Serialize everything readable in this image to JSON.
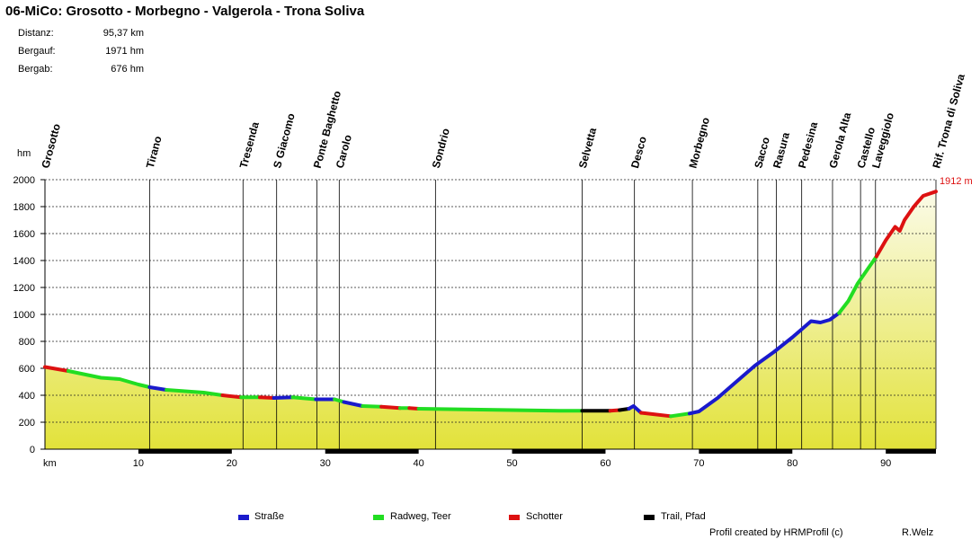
{
  "title": "06-MiCo: Grosotto - Morbegno - Valgerola - Trona Soliva",
  "stats": [
    {
      "label": "Distanz:",
      "value": "95,37 km"
    },
    {
      "label": "Bergauf:",
      "value": "1971 hm"
    },
    {
      "label": "Bergab:",
      "value": "676 hm"
    }
  ],
  "legend": [
    {
      "label": "Straße",
      "color": "#1a1acc"
    },
    {
      "label": "Radweg, Teer",
      "color": "#22dd22"
    },
    {
      "label": "Schotter",
      "color": "#dd1111"
    },
    {
      "label": "Trail, Pfad",
      "color": "#000000"
    }
  ],
  "footer": {
    "credit": "Profil created by HRMProfil (c)",
    "author": "R.Welz"
  },
  "chart_data": {
    "type": "area",
    "xlabel": "km",
    "ylabel": "hm",
    "xlim": [
      0,
      95.37
    ],
    "ylim": [
      0,
      2000
    ],
    "x_ticks": [
      10,
      20,
      30,
      40,
      50,
      60,
      70,
      80,
      90
    ],
    "y_ticks": [
      0,
      200,
      400,
      600,
      800,
      1000,
      1200,
      1400,
      1600,
      1800,
      2000
    ],
    "grid": true,
    "end_label": "1912 m",
    "places": [
      {
        "name": "Grosotto",
        "km": 0
      },
      {
        "name": "Tirano",
        "km": 11.2
      },
      {
        "name": "Tresenda",
        "km": 21.2
      },
      {
        "name": "S Giacomo",
        "km": 24.8
      },
      {
        "name": "Ponte Baghetto",
        "km": 29.1
      },
      {
        "name": "Carolo",
        "km": 31.5
      },
      {
        "name": "Sondrio",
        "km": 41.8
      },
      {
        "name": "Selvetta",
        "km": 57.5
      },
      {
        "name": "Desco",
        "km": 63.1
      },
      {
        "name": "Morbegno",
        "km": 69.3
      },
      {
        "name": "Sacco",
        "km": 76.3
      },
      {
        "name": "Rasura",
        "km": 78.3
      },
      {
        "name": "Pedesina",
        "km": 81.0
      },
      {
        "name": "Gerola Alta",
        "km": 84.3
      },
      {
        "name": "Castello",
        "km": 87.3
      },
      {
        "name": "Laveggiolo",
        "km": 88.9
      },
      {
        "name": "Rif. Trona di Soliva",
        "km": 95.37
      }
    ],
    "segments": [
      {
        "surface": "Schotter",
        "points": [
          [
            0,
            610
          ],
          [
            2.5,
            580
          ]
        ]
      },
      {
        "surface": "Radweg, Teer",
        "points": [
          [
            2.5,
            580
          ],
          [
            6,
            530
          ],
          [
            8,
            520
          ],
          [
            10,
            480
          ],
          [
            11.2,
            460
          ]
        ]
      },
      {
        "surface": "Straße",
        "points": [
          [
            11.2,
            460
          ],
          [
            13,
            440
          ]
        ]
      },
      {
        "surface": "Radweg, Teer",
        "points": [
          [
            13,
            440
          ],
          [
            17,
            420
          ],
          [
            19,
            400
          ]
        ]
      },
      {
        "surface": "Schotter",
        "points": [
          [
            19,
            400
          ],
          [
            21,
            385
          ]
        ]
      },
      {
        "surface": "Radweg, Teer",
        "points": [
          [
            21,
            385
          ],
          [
            23,
            385
          ]
        ]
      },
      {
        "surface": "Schotter",
        "points": [
          [
            23,
            385
          ],
          [
            24.5,
            380
          ]
        ]
      },
      {
        "surface": "Straße",
        "points": [
          [
            24.5,
            380
          ],
          [
            26.5,
            385
          ]
        ]
      },
      {
        "surface": "Radweg, Teer",
        "points": [
          [
            26.5,
            385
          ],
          [
            29,
            370
          ]
        ]
      },
      {
        "surface": "Straße",
        "points": [
          [
            29,
            370
          ],
          [
            31,
            370
          ]
        ]
      },
      {
        "surface": "Radweg, Teer",
        "points": [
          [
            31,
            370
          ],
          [
            32,
            350
          ]
        ]
      },
      {
        "surface": "Straße",
        "points": [
          [
            32,
            350
          ],
          [
            34,
            320
          ]
        ]
      },
      {
        "surface": "Radweg, Teer",
        "points": [
          [
            34,
            320
          ],
          [
            36,
            315
          ]
        ]
      },
      {
        "surface": "Schotter",
        "points": [
          [
            36,
            315
          ],
          [
            38,
            305
          ]
        ]
      },
      {
        "surface": "Radweg, Teer",
        "points": [
          [
            38,
            305
          ],
          [
            39,
            305
          ]
        ]
      },
      {
        "surface": "Schotter",
        "points": [
          [
            39,
            305
          ],
          [
            40,
            300
          ]
        ]
      },
      {
        "surface": "Radweg, Teer",
        "points": [
          [
            40,
            300
          ],
          [
            45,
            295
          ],
          [
            50,
            290
          ],
          [
            55,
            285
          ],
          [
            57.5,
            285
          ]
        ]
      },
      {
        "surface": "Trail, Pfad",
        "points": [
          [
            57.5,
            285
          ],
          [
            60.5,
            285
          ]
        ]
      },
      {
        "surface": "Schotter",
        "points": [
          [
            60.5,
            285
          ],
          [
            61.5,
            290
          ]
        ]
      },
      {
        "surface": "Trail, Pfad",
        "points": [
          [
            61.5,
            290
          ],
          [
            62.5,
            300
          ]
        ]
      },
      {
        "surface": "Straße",
        "points": [
          [
            62.5,
            300
          ],
          [
            63,
            320
          ],
          [
            63.8,
            270
          ]
        ]
      },
      {
        "surface": "Schotter",
        "points": [
          [
            63.8,
            270
          ],
          [
            67,
            245
          ]
        ]
      },
      {
        "surface": "Radweg, Teer",
        "points": [
          [
            67,
            245
          ],
          [
            69,
            265
          ]
        ]
      },
      {
        "surface": "Straße",
        "points": [
          [
            69,
            265
          ],
          [
            70,
            280
          ],
          [
            72,
            380
          ],
          [
            74,
            500
          ],
          [
            76,
            620
          ],
          [
            78,
            720
          ],
          [
            80,
            830
          ],
          [
            82,
            950
          ],
          [
            83,
            940
          ],
          [
            84,
            960
          ],
          [
            85,
            1010
          ]
        ]
      },
      {
        "surface": "Radweg, Teer",
        "points": [
          [
            85,
            1010
          ],
          [
            86,
            1100
          ],
          [
            87,
            1230
          ],
          [
            88,
            1330
          ],
          [
            89,
            1430
          ]
        ]
      },
      {
        "surface": "Schotter",
        "points": [
          [
            89,
            1430
          ],
          [
            90,
            1550
          ],
          [
            91,
            1650
          ],
          [
            91.5,
            1620
          ],
          [
            92,
            1700
          ],
          [
            93,
            1800
          ],
          [
            94,
            1880
          ],
          [
            95.37,
            1912
          ]
        ]
      }
    ]
  }
}
